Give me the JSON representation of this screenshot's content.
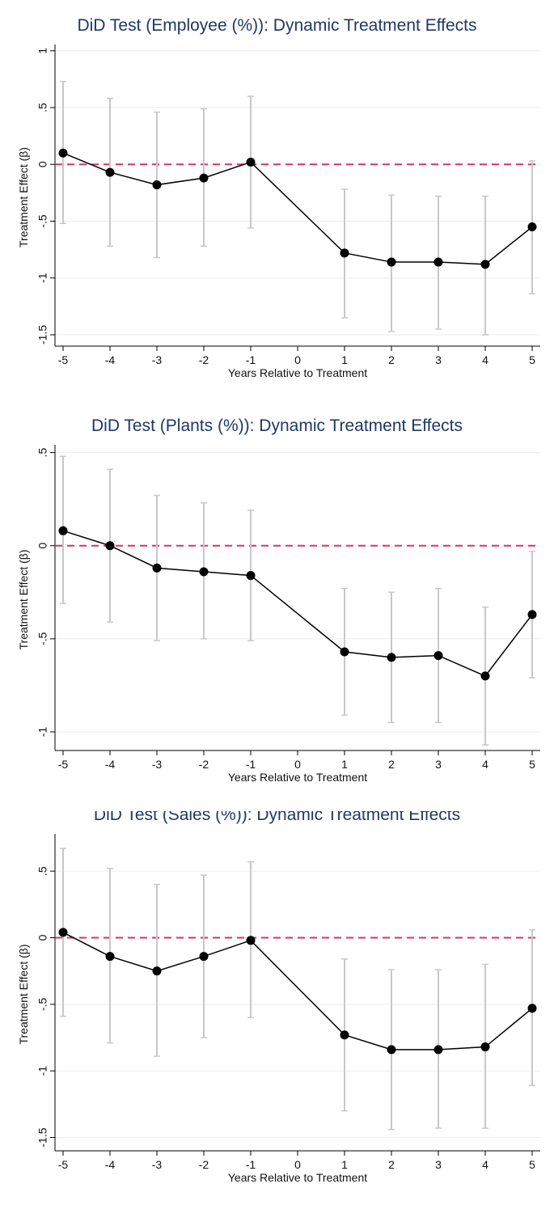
{
  "chart_data": [
    {
      "type": "line",
      "title": "DiD Test (Employee (%)): Dynamic Treatment Effects",
      "xlabel": "Years Relative to Treatment",
      "ylabel": "Treatment Effect (β)",
      "x_ticks": [
        "-5",
        "-4",
        "-3",
        "-2",
        "-1",
        "0",
        "1",
        "2",
        "3",
        "4",
        "5"
      ],
      "y_ticks": [
        1,
        0.5,
        0,
        -0.5,
        -1,
        -1.5
      ],
      "y_tick_labels": [
        "1",
        ".5",
        "0",
        "-.5",
        "-1",
        "-1.5"
      ],
      "xlim": [
        -5,
        5
      ],
      "ylim": [
        -1.6,
        1.02
      ],
      "reference_line": 0,
      "grid": true,
      "colors": {
        "line": "#000000",
        "ci": "#c8c8c8",
        "reference": "#d6336c",
        "title": "#1f3864",
        "grid": "#ececec"
      },
      "points": [
        {
          "x": -5,
          "y": 0.1,
          "lo": -0.52,
          "hi": 0.73
        },
        {
          "x": -4,
          "y": -0.07,
          "lo": -0.72,
          "hi": 0.58
        },
        {
          "x": -3,
          "y": -0.18,
          "lo": -0.82,
          "hi": 0.46
        },
        {
          "x": -2,
          "y": -0.12,
          "lo": -0.72,
          "hi": 0.49
        },
        {
          "x": -1,
          "y": 0.02,
          "lo": -0.56,
          "hi": 0.6
        },
        {
          "x": 1,
          "y": -0.78,
          "lo": -1.35,
          "hi": -0.22
        },
        {
          "x": 2,
          "y": -0.86,
          "lo": -1.47,
          "hi": -0.27
        },
        {
          "x": 3,
          "y": -0.86,
          "lo": -1.45,
          "hi": -0.28
        },
        {
          "x": 4,
          "y": -0.88,
          "lo": -1.5,
          "hi": -0.28
        },
        {
          "x": 5,
          "y": -0.55,
          "lo": -1.14,
          "hi": 0.03
        }
      ]
    },
    {
      "type": "line",
      "title": "DiD Test (Plants (%)): Dynamic Treatment Effects",
      "xlabel": "Years Relative to Treatment",
      "ylabel": "Treatment Effect (β)",
      "x_ticks": [
        "-5",
        "-4",
        "-3",
        "-2",
        "-1",
        "0",
        "1",
        "2",
        "3",
        "4",
        "5"
      ],
      "y_ticks": [
        0.5,
        0,
        -0.5,
        -1
      ],
      "y_tick_labels": [
        ".5",
        "0",
        "-.5",
        "-1"
      ],
      "xlim": [
        -5,
        5
      ],
      "ylim": [
        -1.1,
        0.52
      ],
      "reference_line": 0,
      "grid": true,
      "colors": {
        "line": "#000000",
        "ci": "#c8c8c8",
        "reference": "#d6336c",
        "title": "#1f3864",
        "grid": "#ececec"
      },
      "points": [
        {
          "x": -5,
          "y": 0.08,
          "lo": -0.31,
          "hi": 0.48
        },
        {
          "x": -4,
          "y": 0.0,
          "lo": -0.41,
          "hi": 0.41
        },
        {
          "x": -3,
          "y": -0.12,
          "lo": -0.51,
          "hi": 0.27
        },
        {
          "x": -2,
          "y": -0.14,
          "lo": -0.5,
          "hi": 0.23
        },
        {
          "x": -1,
          "y": -0.16,
          "lo": -0.51,
          "hi": 0.19
        },
        {
          "x": 1,
          "y": -0.57,
          "lo": -0.91,
          "hi": -0.23
        },
        {
          "x": 2,
          "y": -0.6,
          "lo": -0.95,
          "hi": -0.25
        },
        {
          "x": 3,
          "y": -0.59,
          "lo": -0.95,
          "hi": -0.23
        },
        {
          "x": 4,
          "y": -0.7,
          "lo": -1.07,
          "hi": -0.33
        },
        {
          "x": 5,
          "y": -0.37,
          "lo": -0.71,
          "hi": -0.03
        }
      ]
    },
    {
      "type": "line",
      "title": "DiD Test (Sales (%)): Dynamic Treatment Effects",
      "xlabel": "Years Relative to Treatment",
      "ylabel": "Treatment Effect (β)",
      "x_ticks": [
        "-5",
        "-4",
        "-3",
        "-2",
        "-1",
        "0",
        "1",
        "2",
        "3",
        "4",
        "5"
      ],
      "y_ticks": [
        0.5,
        0,
        -0.5,
        -1,
        -1.5
      ],
      "y_tick_labels": [
        ".5",
        "0",
        "-.5",
        "-1",
        "-1.5"
      ],
      "xlim": [
        -5,
        5
      ],
      "ylim": [
        -1.6,
        0.75
      ],
      "reference_line": 0,
      "grid": true,
      "colors": {
        "line": "#000000",
        "ci": "#c8c8c8",
        "reference": "#d6336c",
        "title": "#1f3864",
        "grid": "#ececec"
      },
      "points": [
        {
          "x": -5,
          "y": 0.04,
          "lo": -0.59,
          "hi": 0.67
        },
        {
          "x": -4,
          "y": -0.14,
          "lo": -0.79,
          "hi": 0.52
        },
        {
          "x": -3,
          "y": -0.25,
          "lo": -0.89,
          "hi": 0.4
        },
        {
          "x": -2,
          "y": -0.14,
          "lo": -0.75,
          "hi": 0.47
        },
        {
          "x": -1,
          "y": -0.02,
          "lo": -0.6,
          "hi": 0.57
        },
        {
          "x": 1,
          "y": -0.73,
          "lo": -1.3,
          "hi": -0.16
        },
        {
          "x": 2,
          "y": -0.84,
          "lo": -1.44,
          "hi": -0.24
        },
        {
          "x": 3,
          "y": -0.84,
          "lo": -1.43,
          "hi": -0.24
        },
        {
          "x": 4,
          "y": -0.82,
          "lo": -1.43,
          "hi": -0.2
        },
        {
          "x": 5,
          "y": -0.53,
          "lo": -1.11,
          "hi": 0.06
        }
      ]
    }
  ]
}
